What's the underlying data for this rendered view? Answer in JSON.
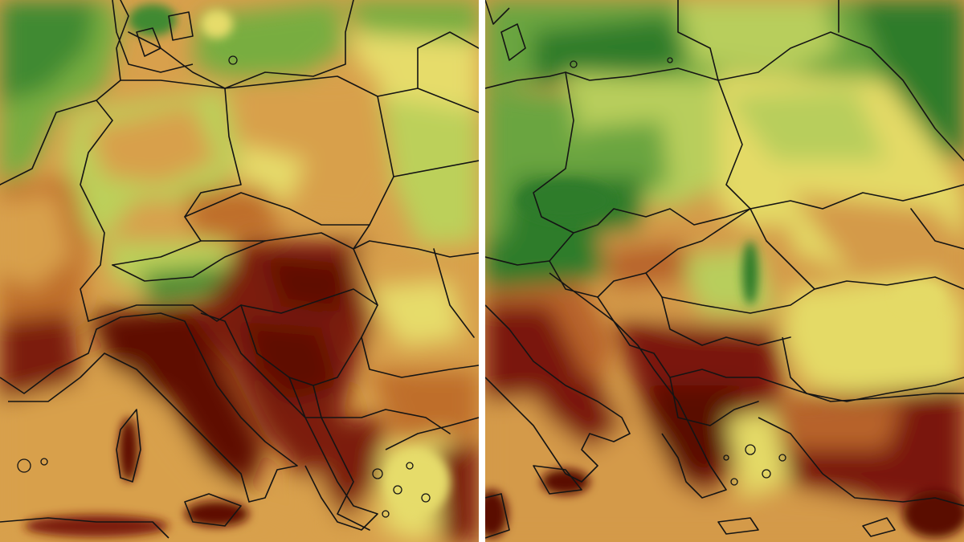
{
  "panels": [
    {
      "id": "left",
      "icon": "temperature-map",
      "palette": {
        "deep_green": "#3f8a32",
        "green": "#78ad3f",
        "yellow_green": "#bcd05a",
        "yellow": "#e6dc6a",
        "orange": "#d8a04c",
        "rust": "#bf6e2c",
        "dark_red": "#7c1a0c",
        "maroon": "#5e0c06"
      }
    },
    {
      "id": "right",
      "icon": "temperature-map",
      "palette": {
        "deep_green": "#2f7c2c",
        "green": "#6aa540",
        "yellow_green": "#b8ce5c",
        "yellow": "#e4da66",
        "orange": "#d49a48",
        "rust": "#b8642a",
        "dark_red": "#7a190c",
        "maroon": "#5a0b06"
      }
    }
  ],
  "divider_color": "#ffffff"
}
